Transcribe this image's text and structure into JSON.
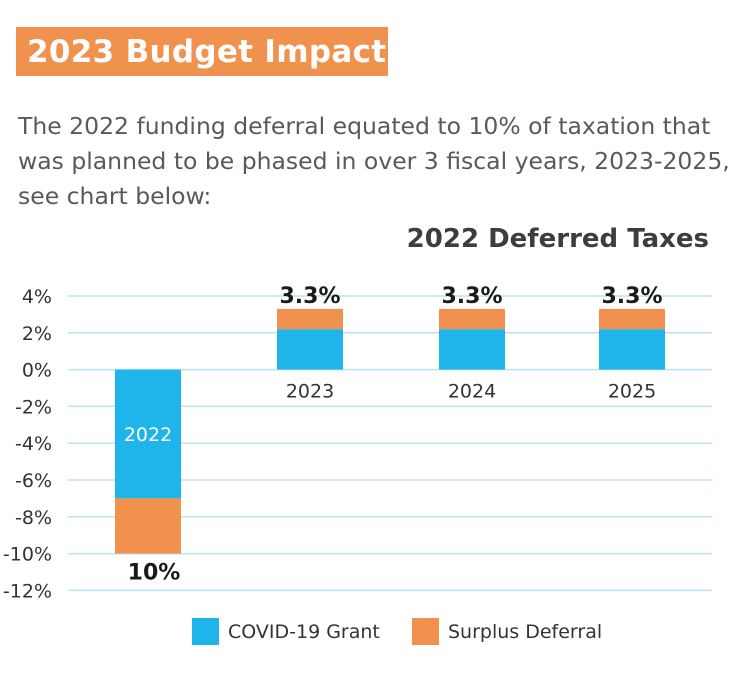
{
  "header": {
    "title": "2023 Budget Impact",
    "description": "The 2022 funding deferral equated to 10% of taxation that was planned to be phased in over 3 fiscal years, 2023-2025, see chart below:"
  },
  "colors": {
    "accent": "#f0924d",
    "covid": "#1fb5ea",
    "surplus": "#f0924d",
    "grid": "#b9e3f3"
  },
  "chart_data": {
    "type": "bar",
    "title": "2022 Deferred Taxes",
    "categories": [
      "2022",
      "2023",
      "2024",
      "2025"
    ],
    "series": [
      {
        "name": "COVID-19 Grant",
        "values": [
          -7,
          2.2,
          2.2,
          2.2
        ]
      },
      {
        "name": "Surplus Deferral",
        "values": [
          -3,
          1.1,
          1.1,
          1.1
        ]
      }
    ],
    "total_labels": [
      "10%",
      "3.3%",
      "3.3%",
      "3.3%"
    ],
    "ylim": [
      -12,
      4
    ],
    "yticks": [
      "4%",
      "2%",
      "0%",
      "-2%",
      "-4%",
      "-6%",
      "-8%",
      "-10%",
      "-12%"
    ],
    "ytick_values": [
      4,
      2,
      0,
      -2,
      -4,
      -6,
      -8,
      -10,
      -12
    ],
    "grid": true,
    "legend_position": "bottom"
  }
}
